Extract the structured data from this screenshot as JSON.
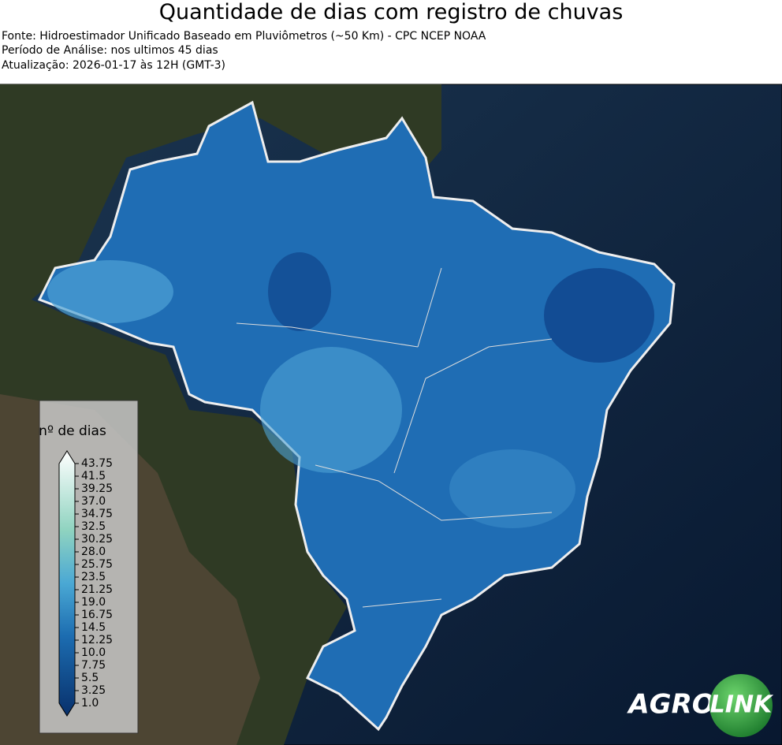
{
  "header": {
    "title": "Quantidade de dias com registro de chuvas",
    "lines": [
      "Fonte: Hidroestimador Unificado Baseado em Pluviômetros (~50 Km) - CPC NCEP NOAA",
      "Período de Análise: nos ultimos 45 dias",
      "Atualização: 2026-01-17 às 12H (GMT-3)"
    ]
  },
  "legend": {
    "title": "nº de dias",
    "ticks": [
      {
        "value": 1.0,
        "label": "1.0"
      },
      3.25,
      5.5,
      7.75,
      {
        "value": 10.0,
        "label": "10.0"
      },
      12.25,
      14.5,
      16.75,
      {
        "value": 19.0,
        "label": "19.0"
      },
      21.25,
      23.5,
      25.75,
      {
        "value": 28.0,
        "label": "28.0"
      },
      30.25,
      32.5,
      34.75,
      {
        "value": 37.0,
        "label": "37.0"
      },
      39.25,
      41.5,
      43.75
    ]
  },
  "logo": {
    "left": "AGRO",
    "right": "LINK"
  }
}
